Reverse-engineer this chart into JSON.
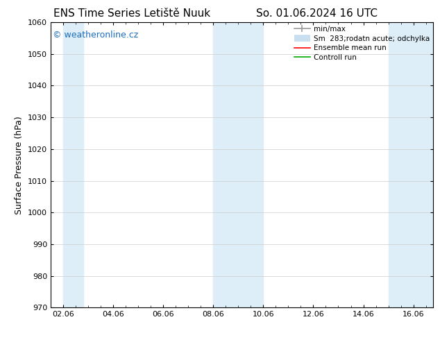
{
  "title_left": "ENS Time Series Letiště Nuuk",
  "title_right": "So. 01.06.2024 16 UTC",
  "ylabel": "Surface Pressure (hPa)",
  "ylim": [
    970,
    1060
  ],
  "yticks": [
    970,
    980,
    990,
    1000,
    1010,
    1020,
    1030,
    1040,
    1050,
    1060
  ],
  "xtick_labels": [
    "02.06",
    "04.06",
    "06.06",
    "08.06",
    "10.06",
    "12.06",
    "14.06",
    "16.06"
  ],
  "xtick_positions": [
    2,
    4,
    6,
    8,
    10,
    12,
    14,
    16
  ],
  "xlim": [
    1.5,
    16.8
  ],
  "background_color": "#ffffff",
  "plot_bg_color": "#ffffff",
  "shaded_bands": [
    {
      "x_start": 2.0,
      "x_end": 2.8,
      "color": "#ddeef8"
    },
    {
      "x_start": 8.0,
      "x_end": 10.0,
      "color": "#ddeef8"
    },
    {
      "x_start": 15.0,
      "x_end": 16.8,
      "color": "#ddeef8"
    }
  ],
  "watermark_text": "© weatheronline.cz",
  "watermark_color": "#1a6cc0",
  "legend_labels": [
    "min/max",
    "Sm  283;rodatn acute; odchylka",
    "Ensemble mean run",
    "Controll run"
  ],
  "legend_colors": [
    "#999999",
    "#c8dff0",
    "#ff0000",
    "#00aa00"
  ],
  "grid_color": "#cccccc",
  "tick_fontsize": 8,
  "ylabel_fontsize": 9,
  "title_fontsize": 11,
  "watermark_fontsize": 9,
  "legend_fontsize": 7.5
}
